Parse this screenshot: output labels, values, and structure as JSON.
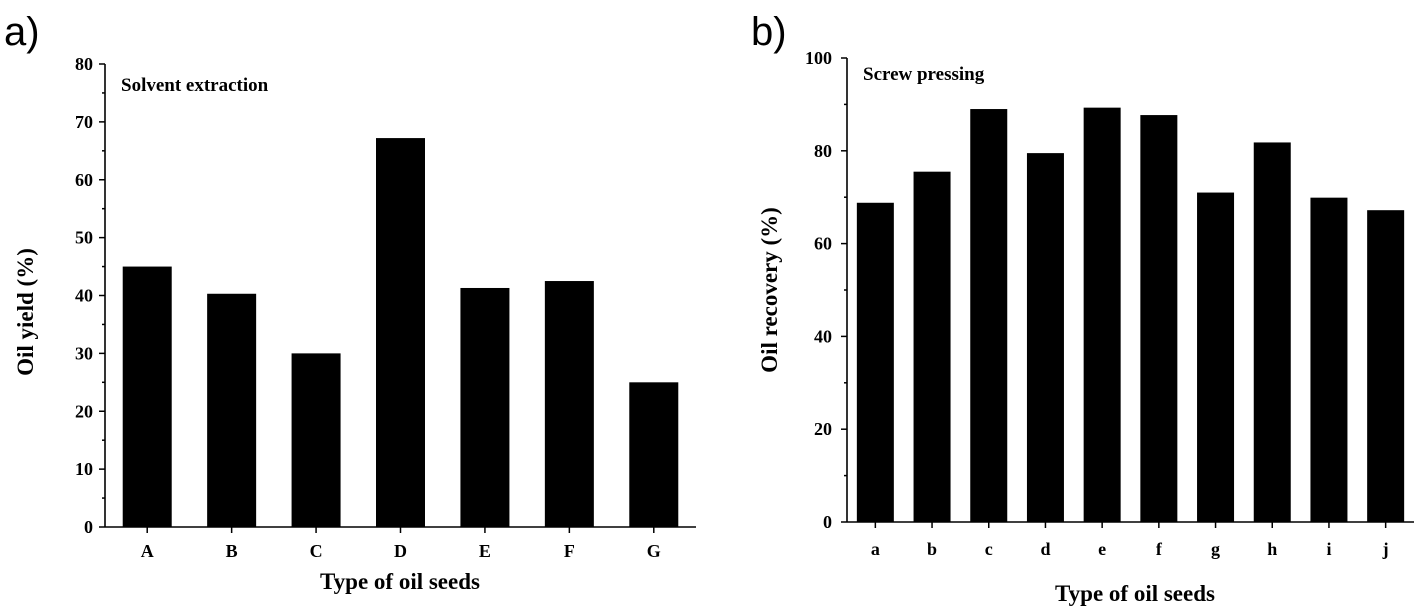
{
  "chart_data": [
    {
      "type": "bar",
      "panel_label": "a)",
      "annotation": "Solvent extraction",
      "xlabel": "Type of oil seeds",
      "ylabel": "Oil yield (%)",
      "ylim": [
        0,
        80
      ],
      "yticks": [
        0,
        10,
        20,
        30,
        40,
        50,
        60,
        70,
        80
      ],
      "categories": [
        "A",
        "B",
        "C",
        "D",
        "E",
        "F",
        "G"
      ],
      "values": [
        45,
        40.3,
        30,
        67.2,
        41.3,
        42.5,
        25
      ],
      "grid": false,
      "bar_color": "#000000"
    },
    {
      "type": "bar",
      "panel_label": "b)",
      "annotation": "Screw pressing",
      "xlabel": "Type of oil seeds",
      "ylabel": "Oil recovery (%)",
      "ylim": [
        0,
        100
      ],
      "yticks": [
        0,
        20,
        40,
        60,
        80,
        100
      ],
      "categories": [
        "a",
        "b",
        "c",
        "d",
        "e",
        "f",
        "g",
        "h",
        "i",
        "j"
      ],
      "values": [
        68.8,
        75.5,
        89,
        79.5,
        89.3,
        87.7,
        71,
        81.8,
        69.9,
        67.2
      ],
      "grid": false,
      "bar_color": "#000000"
    }
  ]
}
